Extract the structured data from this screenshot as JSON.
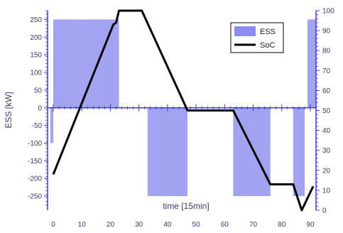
{
  "chart_data": {
    "type": "bar",
    "xlabel": "time [15min]",
    "ylabel": "ESS [kW]",
    "y2label": "",
    "xlim": [
      -2,
      92
    ],
    "ylim": [
      -290,
      275
    ],
    "y2lim": [
      0,
      100
    ],
    "xticks": [
      0,
      10,
      20,
      30,
      40,
      50,
      60,
      70,
      80,
      90
    ],
    "yticks": [
      -250,
      -200,
      -150,
      -100,
      -50,
      0,
      50,
      100,
      150,
      200,
      250
    ],
    "y2ticks": [
      0,
      10,
      20,
      30,
      40,
      50,
      60,
      70,
      80,
      90,
      100
    ],
    "legend_position": "top-right",
    "grid": false,
    "series": [
      {
        "name": "ESS",
        "kind": "bar",
        "axis": "left",
        "color": "#8c8cf0",
        "segments": [
          {
            "x_start": -1,
            "x_end": 0,
            "value": -100
          },
          {
            "x_start": 0,
            "x_end": 23,
            "value": 250
          },
          {
            "x_start": 33,
            "x_end": 47,
            "value": -250
          },
          {
            "x_start": 63,
            "x_end": 76,
            "value": -250
          },
          {
            "x_start": 84,
            "x_end": 88,
            "value": -250
          },
          {
            "x_start": 89,
            "x_end": 92,
            "value": 250
          }
        ]
      },
      {
        "name": "SoC",
        "kind": "line",
        "axis": "right",
        "color": "#000000",
        "x": [
          0,
          21,
          22,
          23,
          31,
          47,
          63,
          76,
          84,
          87,
          91
        ],
        "y": [
          18,
          93,
          94,
          100,
          100,
          50,
          50,
          13,
          13,
          0,
          12
        ]
      }
    ]
  }
}
